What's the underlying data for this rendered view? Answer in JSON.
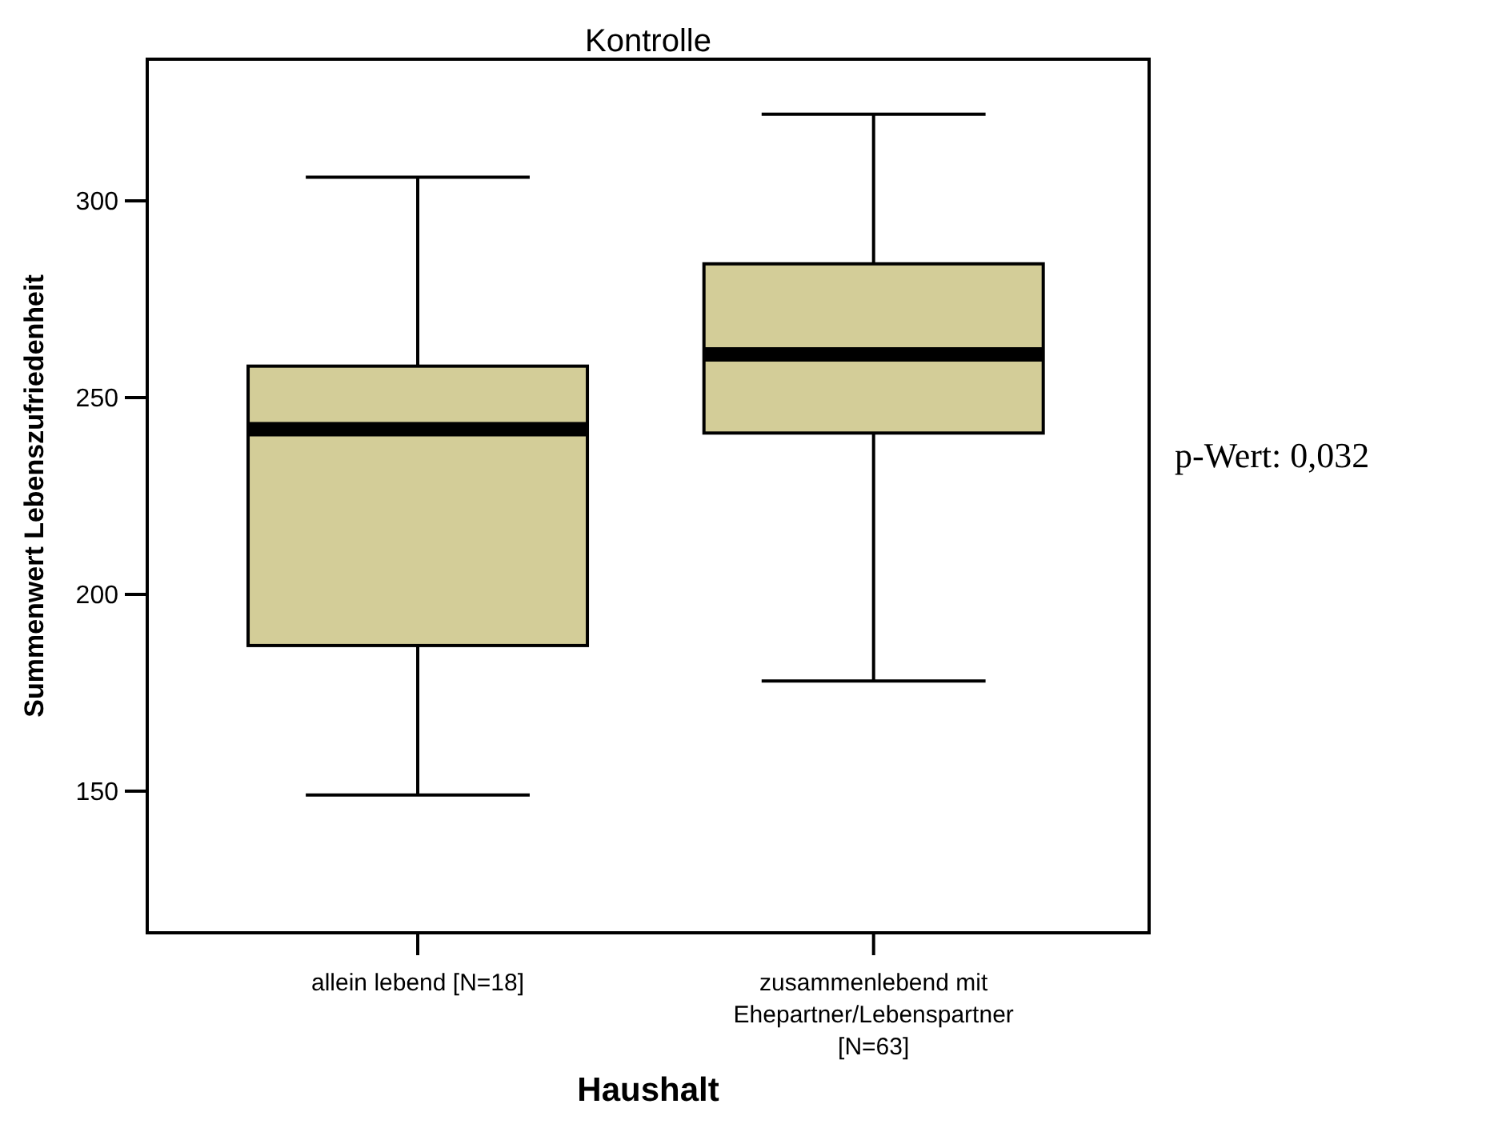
{
  "chart_data": {
    "type": "box",
    "title": "Kontrolle",
    "xlabel": "Haushalt",
    "ylabel": "Summenwert Lebenszufriedenheit",
    "categories": [
      "allein lebend [N=18]",
      "zusammenlebend mit Ehepartner/Lebenspartner [N=63]"
    ],
    "boxes": [
      {
        "low": 149,
        "q1": 187,
        "median": 242,
        "q3": 258,
        "high": 306
      },
      {
        "low": 178,
        "q1": 241,
        "median": 261,
        "q3": 284,
        "high": 322
      }
    ],
    "color": "#d3cd98",
    "ylim": [
      114,
      336
    ],
    "yticks": [
      150,
      200,
      250,
      300
    ],
    "grid": false,
    "annotations": [
      "p-Wert: 0,032"
    ]
  }
}
